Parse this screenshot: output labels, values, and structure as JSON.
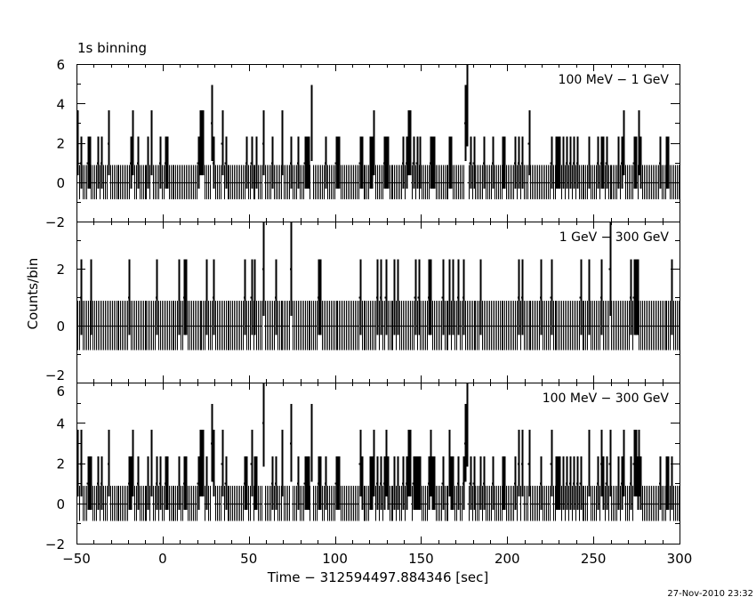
{
  "chart_data": {
    "type": "line",
    "title": "1s binning",
    "xlabel": "Time − 312594497.884346 [sec]",
    "ylabel": "Counts/bin",
    "footer_date": "27-Nov-2010 23:32",
    "bin_width_s": 1,
    "xlim": [
      -50,
      300
    ],
    "xticks": [
      -50,
      0,
      50,
      100,
      150,
      200,
      250,
      300
    ],
    "error_model": "sqrt(n+0.75)",
    "panels": [
      {
        "name": "low",
        "label": "100 MeV − 1 GeV",
        "ylim": [
          -2,
          6
        ],
        "yticks": [
          -2,
          0,
          2,
          4,
          6
        ],
        "nonzero_bins": [
          {
            "count": 1,
            "t": [
              -48,
              -44,
              -43,
              -38,
              -36,
              -19,
              -15,
              -9,
              -2,
              1,
              2,
              20,
              29,
              36,
              48,
              51,
              54,
              63,
              74,
              78,
              82,
              83,
              84,
              94,
              100,
              101,
              102,
              114,
              115,
              120,
              121,
              128,
              129,
              130,
              139,
              141,
              145,
              147,
              149,
              155,
              156,
              157,
              166,
              167,
              178,
              180,
              186,
              191,
              197,
              198,
              204,
              206,
              208,
              225,
              228,
              229,
              230,
              232,
              234,
              236,
              238,
              240,
              247,
              252,
              254,
              255,
              257,
              264,
              266,
              273,
              274,
              277,
              288,
              292,
              293
            ]
          },
          {
            "count": 2,
            "t": [
              -50,
              -32,
              -18,
              -7,
              21,
              22,
              23,
              34,
              58,
              69,
              122,
              142,
              143,
              212,
              267,
              276
            ]
          },
          {
            "count": 3,
            "t": [
              28,
              86,
              175
            ]
          },
          {
            "count": 4,
            "t": [
              176
            ]
          }
        ]
      },
      {
        "name": "high",
        "label": "1 GeV − 300 GeV",
        "ylim": [
          -2,
          3.65
        ],
        "yticks": [
          -2,
          0,
          2
        ],
        "nonzero_bins": [
          {
            "count": 1,
            "t": [
              -48,
              -42,
              -20,
              -4,
              9,
              12,
              13,
              25,
              29,
              47,
              51,
              53,
              65,
              90,
              91,
              114,
              124,
              126,
              129,
              134,
              136,
              146,
              148,
              154,
              155,
              162,
              166,
              168,
              171,
              174,
              184,
              206,
              208,
              219,
              225,
              242,
              247,
              254,
              271,
              273,
              274,
              275,
              295
            ]
          },
          {
            "count": 2,
            "t": [
              58,
              74,
              259
            ]
          }
        ]
      },
      {
        "name": "total",
        "label": "100 MeV − 300 GeV",
        "ylim": [
          -2,
          6
        ],
        "yticks": [
          -2,
          0,
          2,
          4,
          6
        ],
        "sum_of": [
          "low",
          "high"
        ]
      }
    ]
  }
}
